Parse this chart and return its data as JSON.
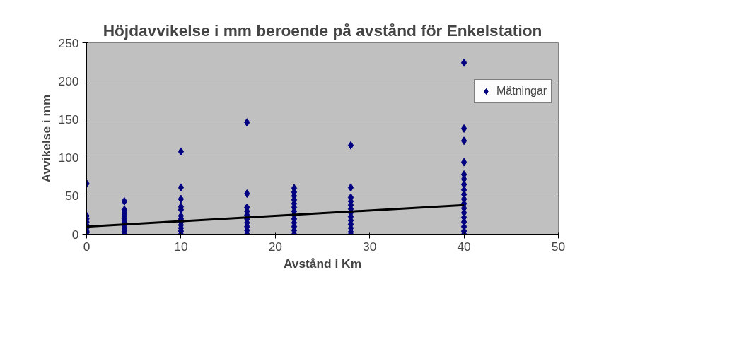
{
  "chart_data": {
    "type": "scatter",
    "title": "Höjdavvikelse i mm beroende på avstånd för Enkelstation",
    "xlabel": "Avstånd i Km",
    "ylabel": "Avvikelse i mm",
    "xlim": [
      0,
      50
    ],
    "xticks": [
      0,
      10,
      20,
      30,
      40,
      50
    ],
    "ylim": [
      0,
      250
    ],
    "yticks": [
      0,
      50,
      100,
      150,
      200,
      250
    ],
    "grid": "y",
    "legend": "right",
    "marker": "diamond",
    "series": [
      {
        "name": "Mätningar",
        "color": "#000080",
        "x": [
          0,
          0,
          0,
          0,
          0,
          0,
          0,
          0,
          4,
          4,
          4,
          4,
          4,
          4,
          4,
          4,
          4,
          4,
          10,
          10,
          10,
          10,
          10,
          10,
          10,
          10,
          10,
          10,
          10,
          10,
          17,
          17,
          17,
          17,
          17,
          17,
          17,
          17,
          17,
          17,
          22,
          22,
          22,
          22,
          22,
          22,
          22,
          22,
          22,
          22,
          22,
          22,
          22,
          28,
          28,
          28,
          28,
          28,
          28,
          28,
          28,
          28,
          28,
          28,
          28,
          28,
          40,
          40,
          40,
          40,
          40,
          40,
          40,
          40,
          40,
          40,
          40,
          40,
          40,
          40,
          40,
          40,
          40,
          40
        ],
        "values": [
          66,
          24,
          20,
          16,
          12,
          8,
          4,
          2,
          43,
          32,
          28,
          24,
          20,
          16,
          12,
          8,
          4,
          0,
          108,
          61,
          46,
          36,
          32,
          24,
          20,
          16,
          12,
          8,
          4,
          0,
          146,
          53,
          35,
          30,
          25,
          20,
          15,
          10,
          5,
          0,
          60,
          55,
          50,
          45,
          40,
          35,
          30,
          25,
          20,
          15,
          10,
          5,
          0,
          116,
          61,
          48,
          43,
          38,
          33,
          28,
          23,
          18,
          13,
          8,
          3,
          0,
          224,
          138,
          122,
          94,
          78,
          72,
          65,
          58,
          52,
          46,
          40,
          34,
          28,
          22,
          16,
          10,
          4,
          0
        ]
      },
      {
        "color": "#000000",
        "type": "line",
        "marker": "none",
        "x": [
          0,
          40
        ],
        "values": [
          10,
          38
        ]
      }
    ]
  }
}
